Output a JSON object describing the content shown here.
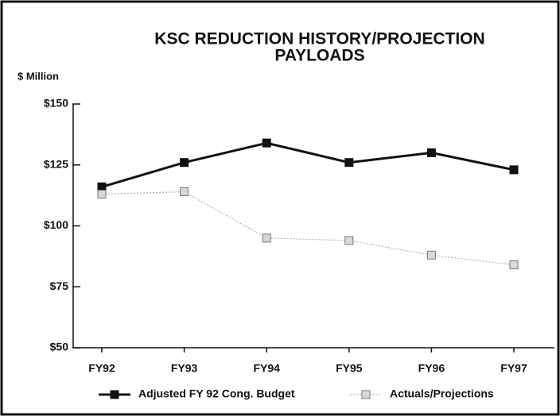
{
  "chart_data": {
    "type": "line",
    "title": [
      "KSC REDUCTION HISTORY/PROJECTION",
      "PAYLOADS"
    ],
    "y_label": "$ Million",
    "categories": [
      "FY92",
      "FY93",
      "FY94",
      "FY95",
      "FY96",
      "FY97"
    ],
    "series": [
      {
        "name": "Adjusted FY 92 Cong. Budget",
        "color": "#111111",
        "values": [
          116,
          126,
          134,
          126,
          130,
          123
        ]
      },
      {
        "name": "Actuals/Projections",
        "color": "#b0b0b0",
        "values": [
          113,
          114,
          95,
          94,
          88,
          84
        ]
      }
    ],
    "ylim": [
      50,
      150
    ],
    "yticks": [
      {
        "value": 50,
        "label": "$50"
      },
      {
        "value": 75,
        "label": "$75"
      },
      {
        "value": 100,
        "label": "$100"
      },
      {
        "value": 125,
        "label": "$125"
      },
      {
        "value": 150,
        "label": "$150"
      }
    ],
    "legend": "bottom"
  }
}
